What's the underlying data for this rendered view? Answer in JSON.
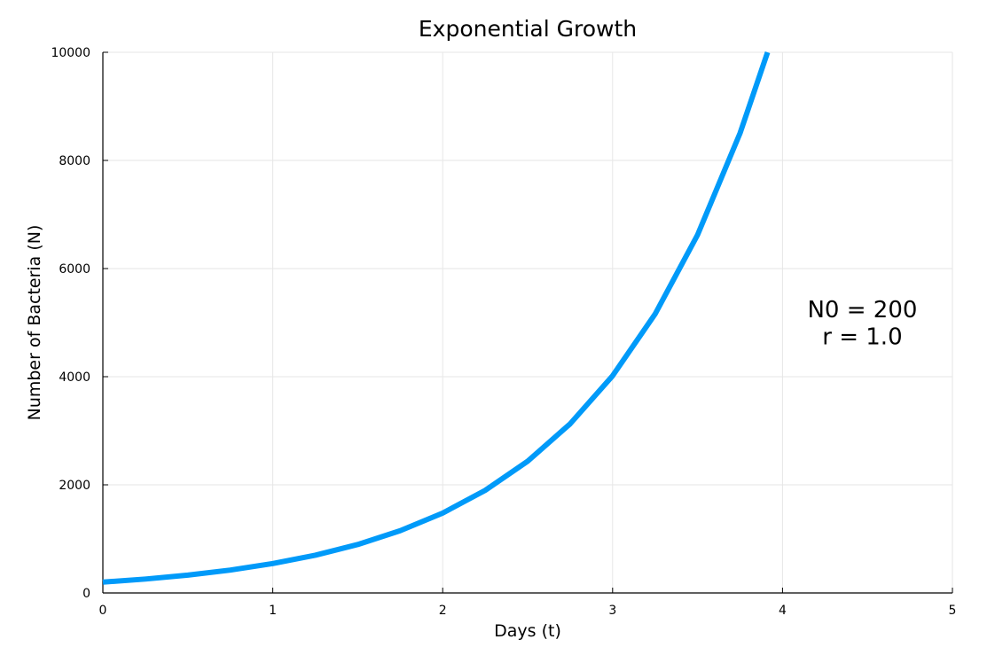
{
  "chart_data": {
    "type": "line",
    "title": "Exponential Growth",
    "xlabel": "Days (t)",
    "ylabel": "Number of Bacteria (N)",
    "xlim": [
      0,
      5
    ],
    "ylim": [
      0,
      10000
    ],
    "xticks": [
      0,
      1,
      2,
      3,
      4,
      5
    ],
    "yticks": [
      0,
      2000,
      4000,
      6000,
      8000,
      10000
    ],
    "grid": true,
    "legend": "none",
    "series": [
      {
        "color": "#009af9",
        "x": [
          0.0,
          0.25,
          0.5,
          0.75,
          1.0,
          1.25,
          1.5,
          1.75,
          2.0,
          2.25,
          2.5,
          2.75,
          3.0,
          3.25,
          3.5,
          3.75,
          3.912
        ],
        "y": [
          200,
          257,
          330,
          423,
          544,
          698,
          896,
          1151,
          1478,
          1898,
          2436,
          3128,
          4017,
          5158,
          6623,
          8504,
          10000
        ]
      }
    ],
    "annotations": [
      {
        "text": "N0 = 200",
        "x": 4.47,
        "y": 5100
      },
      {
        "text": "r = 1.0",
        "x": 4.47,
        "y": 4600
      }
    ]
  }
}
